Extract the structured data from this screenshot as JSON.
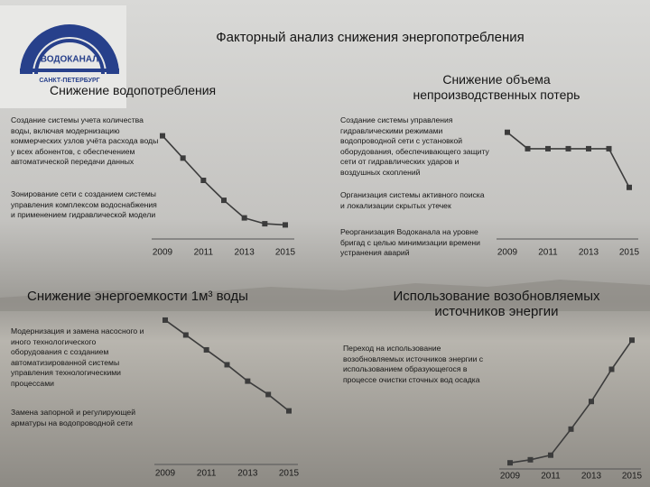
{
  "title": "Факторный анализ снижения энергопотребления",
  "logo": {
    "name": "ВОДОКАНАЛ",
    "city": "САНКТ-ПЕТЕРБУРГ"
  },
  "sections": [
    {
      "heading": "Снижение водопотребления",
      "items": [
        "Создание системы учета количества воды, включая модернизацию коммерческих узлов учёта расхода воды у всех абонентов, с обеспечением автоматической передачи данных",
        "Зонирование сети с созданием системы управления комплексом водоснабжения и применением гидравлической модели"
      ],
      "chart": {
        "type": "line",
        "x": [
          2009,
          2010,
          2011,
          2012,
          2013,
          2014,
          2015
        ],
        "values": [
          88,
          69,
          50,
          33,
          18,
          13,
          12
        ],
        "xlim": [
          2009,
          2015
        ],
        "xticks": [
          2009,
          2011,
          2013,
          2015
        ],
        "ylim": [
          0,
          100
        ],
        "color": "#3c3c3c"
      }
    },
    {
      "heading": "Снижение объема непроизводственных потерь",
      "items": [
        "Создание системы управления гидравлическими режимами водопроводной сети с установкой оборудования, обеспечивающего защиту сети от гидравлических ударов и воздушных скоплений",
        "Организация системы активного поиска и локализации скрытых утечек",
        "Реорганизация Водоканала на уровне бригад с целью минимизации времени устранения аварий"
      ],
      "chart": {
        "type": "line",
        "x": [
          2009,
          2010,
          2011,
          2012,
          2013,
          2014,
          2015
        ],
        "values": [
          91,
          77,
          77,
          77,
          77,
          77,
          44
        ],
        "xlim": [
          2009,
          2015
        ],
        "xticks": [
          2009,
          2011,
          2013,
          2015
        ],
        "ylim": [
          0,
          100
        ],
        "color": "#3c3c3c"
      }
    },
    {
      "heading": "Снижение энергоемкости 1м³ воды",
      "items": [
        "Модернизация и замена насосного и иного технологического оборудования с созданием автоматизированной системы управления технологическими процессами",
        "Замена запорной и регулирующей арматуры на водопроводной сети"
      ],
      "chart": {
        "type": "line",
        "x": [
          2009,
          2010,
          2011,
          2012,
          2013,
          2014,
          2015
        ],
        "values": [
          97,
          87,
          77,
          67,
          56,
          47,
          36
        ],
        "xlim": [
          2009,
          2015
        ],
        "xticks": [
          2009,
          2011,
          2013,
          2015
        ],
        "ylim": [
          0,
          100
        ],
        "color": "#3c3c3c"
      }
    },
    {
      "heading": "Использование возобновляемых источников энергии",
      "items": [
        "Переход на использование возобновляемых источников энергии с использованием образующегося в процессе очистки сточных вод осадка"
      ],
      "chart": {
        "type": "line",
        "x": [
          2009,
          2010,
          2011,
          2012,
          2013,
          2014,
          2015
        ],
        "values": [
          4,
          6,
          9,
          26,
          44,
          65,
          84
        ],
        "xlim": [
          2009,
          2015
        ],
        "xticks": [
          2009,
          2011,
          2013,
          2015
        ],
        "ylim": [
          0,
          100
        ],
        "color": "#3c3c3c"
      }
    }
  ]
}
